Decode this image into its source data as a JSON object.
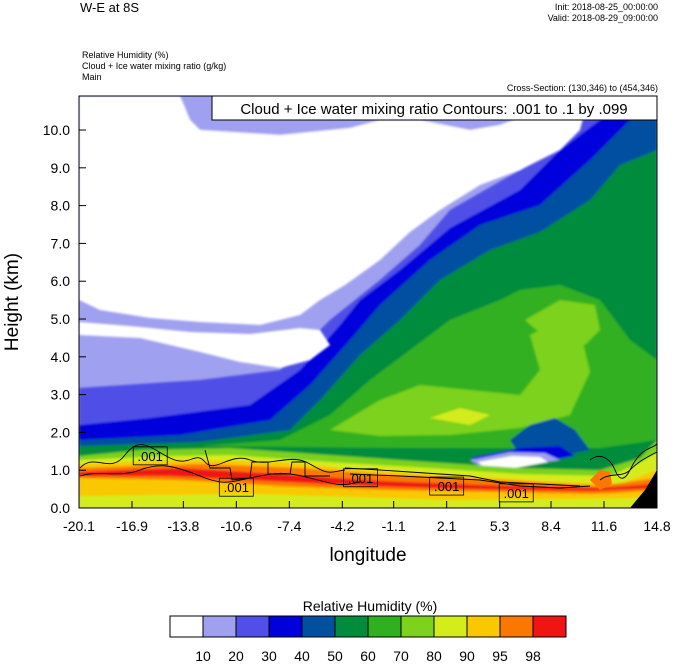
{
  "header": {
    "plot_title": "W-E at 8S",
    "init_time": "Init: 2018-08-25_00:00:00",
    "valid_time": "Valid: 2018-08-29_09:00:00",
    "fields": [
      "Relative Humidity   (%)",
      "Cloud + Ice water mixing ratio   (g/kg)",
      "Main"
    ],
    "cross_section": "Cross-Section: (130,346) to (454,346)"
  },
  "chart_data": {
    "type": "heatmap",
    "contour_label": "Cloud + Ice water mixing ratio Contours: .001 to .1 by .099",
    "xlabel": "longitude",
    "ylabel": "Height (km)",
    "xticks": [
      "-20.1",
      "-16.9",
      "-13.8",
      "-10.6",
      "-7.4",
      "-4.2",
      "-1.1",
      "2.1",
      "5.3",
      "8.4",
      "11.6",
      "14.8"
    ],
    "xticks_values": [
      -20.1,
      -16.9,
      -13.8,
      -10.6,
      -7.4,
      -4.2,
      -1.1,
      2.1,
      5.3,
      8.4,
      11.6,
      14.8
    ],
    "yticks": [
      "0.0",
      "1.0",
      "2.0",
      "3.0",
      "4.0",
      "5.0",
      "6.0",
      "7.0",
      "8.0",
      "9.0",
      "10.0"
    ],
    "xlim": [
      -20.1,
      14.8
    ],
    "ylim": [
      0,
      10.9
    ],
    "contour_labels": [
      {
        "text": ".001",
        "x": -15.8,
        "y": 1.38
      },
      {
        "text": ".001",
        "x": -10.6,
        "y": 0.55
      },
      {
        "text": ".001",
        "x": -3.1,
        "y": 0.8
      },
      {
        "text": ".001",
        "x": 2.1,
        "y": 0.58
      },
      {
        "text": ".001",
        "x": 6.3,
        "y": 0.4
      }
    ],
    "colorbar": {
      "title": "Relative Humidity  (%)",
      "levels": [
        "10",
        "20",
        "30",
        "40",
        "50",
        "60",
        "70",
        "80",
        "90",
        "95",
        "98"
      ],
      "colors": [
        "#ffffff",
        "#a0a0f0",
        "#5050e8",
        "#0000dc",
        "#0050a0",
        "#008c3c",
        "#30b020",
        "#7cd21c",
        "#d4ec1c",
        "#fac800",
        "#fa7800",
        "#f01414"
      ]
    }
  }
}
